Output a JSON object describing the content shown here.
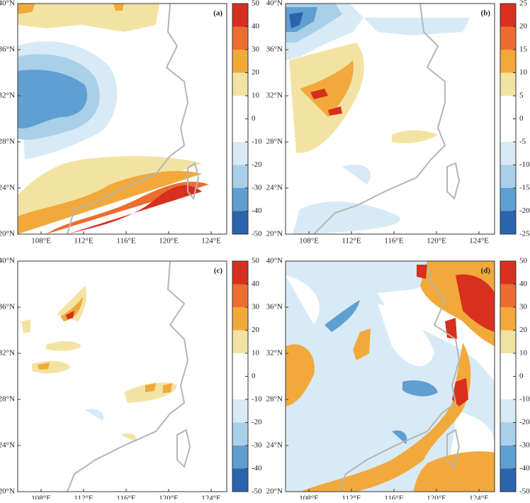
{
  "panels": [
    {
      "label": "(a)",
      "lat_ticks": [
        "40°N",
        "36°N",
        "32°N",
        "28°N",
        "24°N",
        "20°N"
      ],
      "lon_ticks": [
        "108°E",
        "112°E",
        "116°E",
        "120°E",
        "124°E"
      ],
      "colorbar": {
        "levels": [
          50,
          40,
          30,
          20,
          10,
          0,
          -10,
          -20,
          -30,
          -40,
          -50
        ],
        "colors": [
          "#d7301f",
          "#ec6d30",
          "#f2a93b",
          "#f3e3a3",
          "#ffffff",
          "#ffffff",
          "#d8eaf5",
          "#a9d0e8",
          "#5f9fd1",
          "#2a64ad"
        ]
      }
    },
    {
      "label": "(b)",
      "lat_ticks": [
        "40°N",
        "36°N",
        "32°N",
        "28°N",
        "24°N",
        "20°N"
      ],
      "lon_ticks": [
        "108°E",
        "112°E",
        "116°E",
        "120°E",
        "124°E"
      ],
      "colorbar": {
        "levels": [
          25,
          20,
          15,
          10,
          5,
          0,
          -5,
          -10,
          -15,
          -20,
          -25
        ],
        "colors": [
          "#d7301f",
          "#ec6d30",
          "#f2a93b",
          "#f3e3a3",
          "#ffffff",
          "#ffffff",
          "#d8eaf5",
          "#a9d0e8",
          "#5f9fd1",
          "#2a64ad"
        ]
      }
    },
    {
      "label": "(c)",
      "lat_ticks": [
        "40°N",
        "36°N",
        "32°N",
        "28°N",
        "24°N",
        "20°N"
      ],
      "lon_ticks": [
        "108°E",
        "112°E",
        "116°E",
        "120°E",
        "124°E"
      ],
      "colorbar": {
        "levels": [
          50,
          40,
          30,
          20,
          10,
          0,
          -10,
          -20,
          -30,
          -40,
          -50
        ],
        "colors": [
          "#d7301f",
          "#ec6d30",
          "#f2a93b",
          "#f3e3a3",
          "#ffffff",
          "#ffffff",
          "#d8eaf5",
          "#a9d0e8",
          "#5f9fd1",
          "#2a64ad"
        ]
      }
    },
    {
      "label": "(d)",
      "lat_ticks": [
        "40°N",
        "36°N",
        "32°N",
        "28°N",
        "24°N",
        "20°N"
      ],
      "lon_ticks": [
        "108°E",
        "112°E",
        "116°E",
        "120°E",
        "124°E"
      ],
      "colorbar": {
        "levels": [
          50,
          40,
          30,
          20,
          10,
          0,
          -10,
          -20,
          -30,
          -40,
          -50
        ],
        "colors": [
          "#d7301f",
          "#ec6d30",
          "#f2a93b",
          "#f3e3a3",
          "#ffffff",
          "#ffffff",
          "#d8eaf5",
          "#a9d0e8",
          "#5f9fd1",
          "#2a64ad"
        ]
      }
    }
  ]
}
